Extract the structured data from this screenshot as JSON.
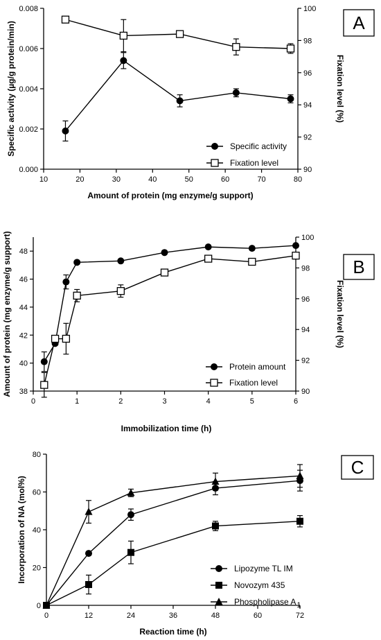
{
  "chart_data": [
    {
      "type": "line",
      "panel_label": "A",
      "xlabel": "Amount of protein (mg enzyme/g support)",
      "ylabel": "Specific activity (µg/g protein/min)",
      "y2label": "Fixation level (%)",
      "xlim": [
        10,
        80
      ],
      "ylim": [
        0,
        0.008
      ],
      "y2lim": [
        90,
        100
      ],
      "xticks": [
        "10",
        "20",
        "30",
        "40",
        "50",
        "60",
        "70",
        "80"
      ],
      "yticks": [
        "0.000",
        "0.002",
        "0.004",
        "0.006",
        "0.008"
      ],
      "y2ticks": [
        "90",
        "92",
        "94",
        "96",
        "98",
        "100"
      ],
      "legend_position": "bottom-right",
      "series": [
        {
          "name": "Specific activity",
          "marker": "circle",
          "axis": "left",
          "x": [
            16,
            32,
            47.5,
            63,
            78
          ],
          "y": [
            0.0019,
            0.0054,
            0.0034,
            0.0038,
            0.0035
          ],
          "err": [
            0.0005,
            0.0004,
            0.0003,
            0.0002,
            0.0002
          ]
        },
        {
          "name": "Fixation level",
          "marker": "open-square",
          "axis": "right",
          "x": [
            16,
            32,
            47.5,
            63,
            78
          ],
          "y": [
            99.3,
            98.3,
            98.4,
            97.6,
            97.5
          ],
          "err": [
            0.2,
            1.0,
            0.0,
            0.5,
            0.3
          ]
        }
      ]
    },
    {
      "type": "line",
      "panel_label": "B",
      "xlabel": "Immobilization time (h)",
      "ylabel": "Amount of protein (mg enzyme/g support)",
      "y2label": "Fixation level (%)",
      "xlim": [
        0,
        6
      ],
      "ylim": [
        38,
        49
      ],
      "y2lim": [
        90,
        100
      ],
      "xticks": [
        "0",
        "1",
        "2",
        "3",
        "4",
        "5",
        "6"
      ],
      "yticks": [
        "38",
        "40",
        "42",
        "44",
        "46",
        "48"
      ],
      "y2ticks": [
        "90",
        "92",
        "94",
        "96",
        "98",
        "100"
      ],
      "legend_position": "bottom-right",
      "series": [
        {
          "name": "Protein amount",
          "marker": "circle",
          "axis": "left",
          "x": [
            0.25,
            0.5,
            0.75,
            1,
            2,
            3,
            4,
            5,
            6
          ],
          "y": [
            40.1,
            41.4,
            45.8,
            47.2,
            47.3,
            47.9,
            48.3,
            48.2,
            48.4
          ],
          "err": [
            0.7,
            0.0,
            0.5,
            0.0,
            0.0,
            0.0,
            0.0,
            0.0,
            0.0
          ]
        },
        {
          "name": "Fixation level",
          "marker": "open-square",
          "axis": "right",
          "x": [
            0.25,
            0.5,
            0.75,
            1,
            2,
            3,
            4,
            5,
            6
          ],
          "y": [
            90.4,
            93.4,
            93.4,
            96.2,
            96.5,
            97.7,
            98.6,
            98.4,
            98.8
          ],
          "err": [
            0.8,
            0.0,
            1.0,
            0.4,
            0.4,
            0.0,
            0.0,
            0.0,
            0.0
          ]
        }
      ]
    },
    {
      "type": "line",
      "panel_label": "C",
      "xlabel": "Reaction time (h)",
      "ylabel": "Incorporation of NA (mol%)",
      "xlim": [
        0,
        72
      ],
      "ylim": [
        0,
        80
      ],
      "xticks": [
        "0",
        "12",
        "24",
        "36",
        "48",
        "60",
        "72"
      ],
      "yticks": [
        "0",
        "20",
        "40",
        "60",
        "80"
      ],
      "legend_position": "bottom-right",
      "series": [
        {
          "name": "Lipozyme TL IM",
          "marker": "circle",
          "x": [
            0,
            12,
            24,
            48,
            72
          ],
          "y": [
            0,
            27.5,
            48,
            62,
            66
          ],
          "err": [
            0,
            0,
            3,
            3.5,
            5.5
          ]
        },
        {
          "name": "Novozym 435",
          "marker": "square",
          "x": [
            0,
            12,
            24,
            48,
            72
          ],
          "y": [
            0,
            11,
            28,
            42,
            44.5
          ],
          "err": [
            0,
            5,
            6,
            2.5,
            3
          ]
        },
        {
          "name": "Phospholipase A",
          "name_subscript": "1",
          "marker": "triangle",
          "x": [
            0,
            12,
            24,
            48,
            72
          ],
          "y": [
            0,
            49.5,
            59.5,
            65.5,
            68.5
          ],
          "err": [
            0,
            6,
            2,
            4.5,
            6
          ]
        }
      ]
    }
  ]
}
